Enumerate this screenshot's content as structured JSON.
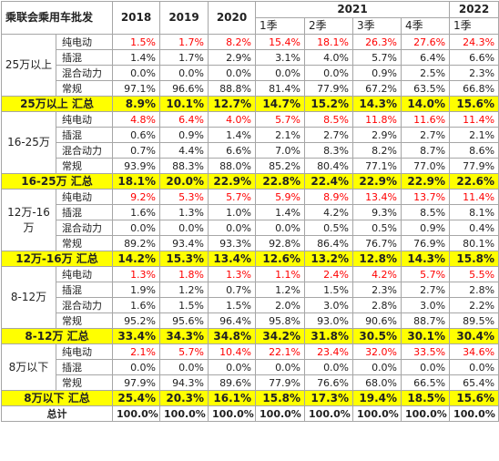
{
  "header": {
    "title": "乘联会乘用车批发",
    "years": [
      "2018",
      "2019",
      "2020"
    ],
    "year_2021": "2021",
    "year_2022": "2022",
    "quarters": [
      "1季",
      "2季",
      "3季",
      "4季",
      "1季"
    ]
  },
  "groups": [
    {
      "label": "25万以上",
      "rows": [
        {
          "type": "纯电动",
          "red": true,
          "values": [
            "1.5%",
            "1.7%",
            "8.2%",
            "15.4%",
            "18.1%",
            "26.3%",
            "27.6%",
            "24.3%"
          ]
        },
        {
          "type": "插混",
          "red": false,
          "values": [
            "1.4%",
            "1.7%",
            "2.9%",
            "3.1%",
            "4.0%",
            "5.7%",
            "6.4%",
            "6.6%"
          ]
        },
        {
          "type": "混合动力",
          "red": false,
          "values": [
            "0.0%",
            "0.0%",
            "0.0%",
            "0.0%",
            "0.0%",
            "0.9%",
            "2.5%",
            "2.3%"
          ]
        },
        {
          "type": "常规",
          "red": false,
          "values": [
            "97.1%",
            "96.6%",
            "88.8%",
            "81.4%",
            "77.9%",
            "67.2%",
            "63.5%",
            "66.8%"
          ]
        }
      ],
      "summary": {
        "label": "25万以上 汇总",
        "values": [
          "8.9%",
          "10.1%",
          "12.7%",
          "14.7%",
          "15.2%",
          "14.3%",
          "14.0%",
          "15.6%"
        ]
      }
    },
    {
      "label": "16-25万",
      "rows": [
        {
          "type": "纯电动",
          "red": true,
          "values": [
            "4.8%",
            "6.4%",
            "4.0%",
            "5.7%",
            "8.5%",
            "11.8%",
            "11.6%",
            "11.4%"
          ]
        },
        {
          "type": "插混",
          "red": false,
          "values": [
            "0.6%",
            "0.9%",
            "1.4%",
            "2.1%",
            "2.7%",
            "2.9%",
            "2.7%",
            "2.1%"
          ]
        },
        {
          "type": "混合动力",
          "red": false,
          "values": [
            "0.7%",
            "4.4%",
            "6.6%",
            "7.0%",
            "8.3%",
            "8.2%",
            "8.7%",
            "8.6%"
          ]
        },
        {
          "type": "常规",
          "red": false,
          "values": [
            "93.9%",
            "88.3%",
            "88.0%",
            "85.2%",
            "80.4%",
            "77.1%",
            "77.0%",
            "77.9%"
          ]
        }
      ],
      "summary": {
        "label": "16-25万 汇总",
        "values": [
          "18.1%",
          "20.0%",
          "22.9%",
          "22.8%",
          "22.4%",
          "22.9%",
          "22.9%",
          "22.6%"
        ]
      }
    },
    {
      "label": "12万-16万",
      "rows": [
        {
          "type": "纯电动",
          "red": true,
          "values": [
            "9.2%",
            "5.3%",
            "5.7%",
            "5.9%",
            "8.9%",
            "13.4%",
            "13.7%",
            "11.4%"
          ]
        },
        {
          "type": "插混",
          "red": false,
          "values": [
            "1.6%",
            "1.3%",
            "1.0%",
            "1.4%",
            "4.2%",
            "9.3%",
            "8.5%",
            "8.1%"
          ]
        },
        {
          "type": "混合动力",
          "red": false,
          "values": [
            "0.0%",
            "0.0%",
            "0.0%",
            "0.0%",
            "0.5%",
            "0.5%",
            "0.9%",
            "0.4%"
          ]
        },
        {
          "type": "常规",
          "red": false,
          "values": [
            "89.2%",
            "93.4%",
            "93.3%",
            "92.8%",
            "86.4%",
            "76.7%",
            "76.9%",
            "80.1%"
          ]
        }
      ],
      "summary": {
        "label": "12万-16万 汇总",
        "values": [
          "14.2%",
          "15.3%",
          "13.4%",
          "12.6%",
          "13.2%",
          "12.8%",
          "14.3%",
          "15.8%"
        ]
      }
    },
    {
      "label": "8-12万",
      "rows": [
        {
          "type": "纯电动",
          "red": true,
          "values": [
            "1.3%",
            "1.8%",
            "1.3%",
            "1.1%",
            "2.4%",
            "4.2%",
            "5.7%",
            "5.5%"
          ]
        },
        {
          "type": "插混",
          "red": false,
          "values": [
            "1.9%",
            "1.2%",
            "0.7%",
            "1.2%",
            "1.5%",
            "2.3%",
            "2.7%",
            "2.8%"
          ]
        },
        {
          "type": "混合动力",
          "red": false,
          "values": [
            "1.6%",
            "1.5%",
            "1.5%",
            "2.0%",
            "3.0%",
            "2.8%",
            "3.0%",
            "2.2%"
          ]
        },
        {
          "type": "常规",
          "red": false,
          "values": [
            "95.2%",
            "95.6%",
            "96.4%",
            "95.8%",
            "93.0%",
            "90.6%",
            "88.7%",
            "89.5%"
          ]
        }
      ],
      "summary": {
        "label": "8-12万 汇总",
        "values": [
          "33.4%",
          "34.3%",
          "34.8%",
          "34.2%",
          "31.8%",
          "30.5%",
          "30.1%",
          "30.4%"
        ]
      }
    },
    {
      "label": "8万以下",
      "rows": [
        {
          "type": "纯电动",
          "red": true,
          "values": [
            "2.1%",
            "5.7%",
            "10.4%",
            "22.1%",
            "23.4%",
            "32.0%",
            "33.5%",
            "34.6%"
          ]
        },
        {
          "type": "插混",
          "red": false,
          "values": [
            "0.0%",
            "0.0%",
            "0.0%",
            "0.0%",
            "0.0%",
            "0.0%",
            "0.0%",
            "0.0%"
          ]
        },
        {
          "type": "常规",
          "red": false,
          "values": [
            "97.9%",
            "94.3%",
            "89.6%",
            "77.9%",
            "76.6%",
            "68.0%",
            "66.5%",
            "65.4%"
          ]
        }
      ],
      "summary": {
        "label": "8万以下 汇总",
        "values": [
          "25.4%",
          "20.3%",
          "16.1%",
          "15.8%",
          "17.3%",
          "19.4%",
          "18.5%",
          "15.6%"
        ]
      }
    }
  ],
  "total": {
    "label": "总计",
    "values": [
      "100.0%",
      "100.0%",
      "100.0%",
      "100.0%",
      "100.0%",
      "100.0%",
      "100.0%",
      "100.0%"
    ]
  }
}
